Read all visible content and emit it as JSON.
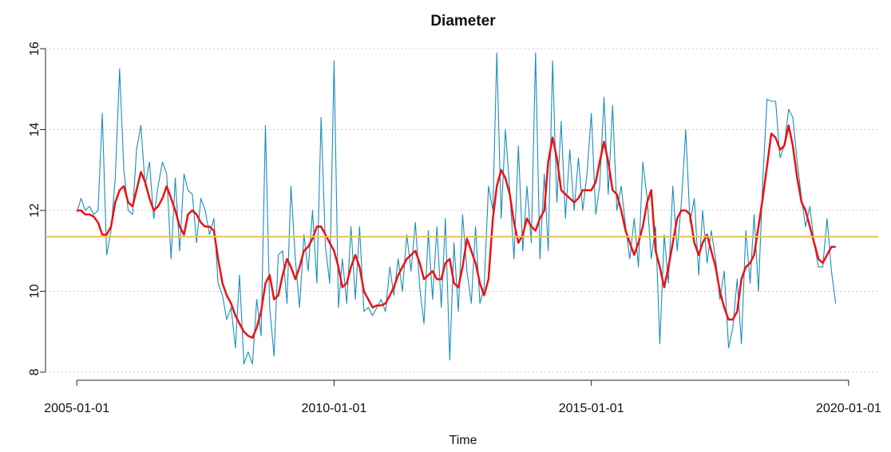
{
  "chart_data": {
    "type": "line",
    "title": "Diameter",
    "xlabel": "Time",
    "x": [
      "2005-01-01",
      "2005-02-01",
      "2005-03-01",
      "2005-04-01",
      "2005-05-01",
      "2005-06-01",
      "2005-07-01",
      "2005-08-01",
      "2005-09-01",
      "2005-10-01",
      "2005-11-01",
      "2005-12-01",
      "2006-01-01",
      "2006-02-01",
      "2006-03-01",
      "2006-04-01",
      "2006-05-01",
      "2006-06-01",
      "2006-07-01",
      "2006-08-01",
      "2006-09-01",
      "2006-10-01",
      "2006-11-01",
      "2006-12-01",
      "2007-01-01",
      "2007-02-01",
      "2007-03-01",
      "2007-04-01",
      "2007-05-01",
      "2007-06-01",
      "2007-07-01",
      "2007-08-01",
      "2007-09-01",
      "2007-10-01",
      "2007-11-01",
      "2007-12-01",
      "2008-01-01",
      "2008-02-01",
      "2008-03-01",
      "2008-04-01",
      "2008-05-01",
      "2008-06-01",
      "2008-07-01",
      "2008-08-01",
      "2008-09-01",
      "2008-10-01",
      "2008-11-01",
      "2008-12-01",
      "2009-01-01",
      "2009-02-01",
      "2009-03-01",
      "2009-04-01",
      "2009-05-01",
      "2009-06-01",
      "2009-07-01",
      "2009-08-01",
      "2009-09-01",
      "2009-10-01",
      "2009-11-01",
      "2009-12-01",
      "2010-01-01",
      "2010-02-01",
      "2010-03-01",
      "2010-04-01",
      "2010-05-01",
      "2010-06-01",
      "2010-07-01",
      "2010-08-01",
      "2010-09-01",
      "2010-10-01",
      "2010-11-01",
      "2010-12-01",
      "2011-01-01",
      "2011-02-01",
      "2011-03-01",
      "2011-04-01",
      "2011-05-01",
      "2011-06-01",
      "2011-07-01",
      "2011-08-01",
      "2011-09-01",
      "2011-10-01",
      "2011-11-01",
      "2011-12-01",
      "2012-01-01",
      "2012-02-01",
      "2012-03-01",
      "2012-04-01",
      "2012-05-01",
      "2012-06-01",
      "2012-07-01",
      "2012-08-01",
      "2012-09-01",
      "2012-10-01",
      "2012-11-01",
      "2012-12-01",
      "2013-01-01",
      "2013-02-01",
      "2013-03-01",
      "2013-04-01",
      "2013-05-01",
      "2013-06-01",
      "2013-07-01",
      "2013-08-01",
      "2013-09-01",
      "2013-10-01",
      "2013-11-01",
      "2013-12-01",
      "2014-01-01",
      "2014-02-01",
      "2014-03-01",
      "2014-04-01",
      "2014-05-01",
      "2014-06-01",
      "2014-07-01",
      "2014-08-01",
      "2014-09-01",
      "2014-10-01",
      "2014-11-01",
      "2014-12-01",
      "2015-01-01",
      "2015-02-01",
      "2015-03-01",
      "2015-04-01",
      "2015-05-01",
      "2015-06-01",
      "2015-07-01",
      "2015-08-01",
      "2015-09-01",
      "2015-10-01",
      "2015-11-01",
      "2015-12-01",
      "2016-01-01",
      "2016-02-01",
      "2016-03-01",
      "2016-04-01",
      "2016-05-01",
      "2016-06-01",
      "2016-07-01",
      "2016-08-01",
      "2016-09-01",
      "2016-10-01",
      "2016-11-01",
      "2016-12-01",
      "2017-01-01",
      "2017-02-01",
      "2017-03-01",
      "2017-04-01",
      "2017-05-01",
      "2017-06-01",
      "2017-07-01",
      "2017-08-01",
      "2017-09-01",
      "2017-10-01",
      "2017-11-01",
      "2017-12-01",
      "2018-01-01",
      "2018-02-01",
      "2018-03-01",
      "2018-04-01",
      "2018-05-01",
      "2018-06-01",
      "2018-07-01",
      "2018-08-01",
      "2018-09-01",
      "2018-10-01",
      "2018-11-01",
      "2018-12-01",
      "2019-01-01",
      "2019-02-01",
      "2019-03-01",
      "2019-04-01",
      "2019-05-01",
      "2019-06-01",
      "2019-07-01",
      "2019-08-01",
      "2019-09-01",
      "2019-10-01"
    ],
    "series": [
      {
        "color": "#1a8dbd",
        "width": 1.1,
        "values": [
          11.95,
          12.3,
          12.0,
          12.1,
          11.9,
          12.0,
          14.4,
          10.9,
          11.5,
          12.8,
          15.5,
          13.0,
          12.0,
          11.9,
          13.5,
          14.1,
          12.6,
          13.2,
          11.8,
          12.6,
          13.2,
          12.9,
          10.8,
          12.8,
          11.0,
          12.9,
          12.5,
          12.4,
          11.2,
          12.3,
          12.0,
          11.4,
          11.8,
          10.2,
          9.9,
          9.3,
          9.6,
          8.6,
          10.4,
          8.2,
          8.5,
          8.2,
          9.8,
          8.9,
          14.1,
          9.6,
          8.4,
          10.9,
          11.0,
          9.7,
          12.6,
          10.8,
          9.6,
          11.4,
          10.5,
          12.0,
          10.2,
          14.3,
          11.1,
          10.2,
          15.7,
          9.6,
          10.8,
          9.7,
          11.6,
          9.8,
          11.6,
          9.5,
          9.6,
          9.4,
          9.6,
          9.8,
          9.5,
          10.6,
          9.9,
          10.8,
          10.0,
          11.4,
          10.5,
          11.7,
          10.1,
          9.2,
          11.5,
          9.8,
          11.6,
          9.6,
          11.8,
          8.3,
          11.2,
          9.5,
          11.9,
          10.5,
          9.7,
          11.6,
          9.7,
          10.1,
          12.6,
          12.0,
          15.9,
          11.8,
          14.0,
          12.5,
          10.8,
          13.6,
          11.0,
          12.6,
          11.2,
          15.9,
          10.8,
          12.9,
          11.0,
          15.7,
          12.2,
          14.2,
          11.8,
          13.5,
          12.0,
          13.3,
          12.0,
          12.9,
          14.4,
          11.9,
          12.6,
          14.8,
          12.4,
          14.6,
          12.0,
          12.6,
          11.6,
          10.8,
          11.8,
          10.6,
          13.2,
          12.3,
          10.8,
          11.6,
          8.7,
          11.4,
          10.2,
          12.6,
          11.0,
          12.2,
          14.0,
          11.7,
          12.3,
          10.4,
          12.0,
          10.7,
          11.5,
          10.8,
          9.8,
          10.5,
          8.6,
          9.1,
          10.3,
          8.7,
          11.5,
          10.2,
          11.9,
          10.0,
          12.7,
          14.75,
          14.7,
          14.7,
          13.3,
          13.6,
          14.5,
          14.3,
          13.2,
          12.3,
          11.6,
          12.1,
          11.2,
          10.6,
          10.6,
          11.8,
          10.5,
          9.7
        ]
      },
      {
        "color": "#ee1111",
        "width": 2.5,
        "values": [
          12.0,
          12.0,
          11.9,
          11.9,
          11.85,
          11.7,
          11.4,
          11.4,
          11.6,
          12.2,
          12.5,
          12.6,
          12.2,
          12.1,
          12.5,
          12.95,
          12.7,
          12.3,
          12.0,
          12.1,
          12.3,
          12.6,
          12.3,
          12.0,
          11.6,
          11.4,
          11.9,
          12.0,
          11.9,
          11.7,
          11.6,
          11.6,
          11.5,
          10.8,
          10.2,
          9.9,
          9.7,
          9.4,
          9.2,
          9.0,
          8.9,
          8.85,
          9.1,
          9.5,
          10.2,
          10.4,
          9.8,
          9.9,
          10.4,
          10.8,
          10.6,
          10.3,
          10.6,
          11.0,
          11.1,
          11.3,
          11.6,
          11.6,
          11.4,
          11.2,
          11.0,
          10.6,
          10.1,
          10.2,
          10.6,
          10.9,
          10.6,
          10.0,
          9.8,
          9.6,
          9.65,
          9.65,
          9.7,
          9.9,
          10.1,
          10.4,
          10.6,
          10.8,
          10.9,
          11.0,
          10.7,
          10.3,
          10.4,
          10.5,
          10.3,
          10.3,
          10.7,
          10.8,
          10.2,
          10.1,
          10.6,
          11.3,
          11.0,
          10.7,
          10.2,
          9.9,
          10.3,
          11.8,
          12.6,
          13.0,
          12.8,
          12.4,
          11.7,
          11.2,
          11.4,
          11.8,
          11.6,
          11.5,
          11.8,
          12.0,
          13.2,
          13.8,
          13.3,
          12.5,
          12.4,
          12.3,
          12.2,
          12.3,
          12.5,
          12.5,
          12.5,
          12.7,
          13.2,
          13.7,
          13.2,
          12.5,
          12.4,
          12.0,
          11.5,
          11.2,
          10.9,
          11.2,
          11.6,
          12.2,
          12.5,
          11.0,
          10.6,
          10.1,
          10.6,
          11.2,
          11.8,
          12.0,
          12.0,
          11.9,
          11.2,
          10.9,
          11.2,
          11.4,
          11.0,
          10.6,
          10.0,
          9.6,
          9.3,
          9.3,
          9.5,
          10.3,
          10.6,
          10.7,
          10.9,
          11.6,
          12.3,
          13.1,
          13.9,
          13.8,
          13.5,
          13.6,
          14.1,
          13.6,
          12.8,
          12.2,
          12.0,
          11.6,
          11.2,
          10.8,
          10.7,
          10.9,
          11.1,
          11.1
        ]
      }
    ],
    "hline": 11.35,
    "hline_color": "#e6c35c",
    "xlim": [
      "2004-05-24",
      "2020-07-29"
    ],
    "xticks": [
      "2005-01-01",
      "2010-01-01",
      "2015-01-01",
      "2020-01-01"
    ],
    "ylim": [
      7.8,
      16.08
    ],
    "yticks": [
      8,
      10,
      12,
      14,
      16
    ],
    "grid": true
  }
}
